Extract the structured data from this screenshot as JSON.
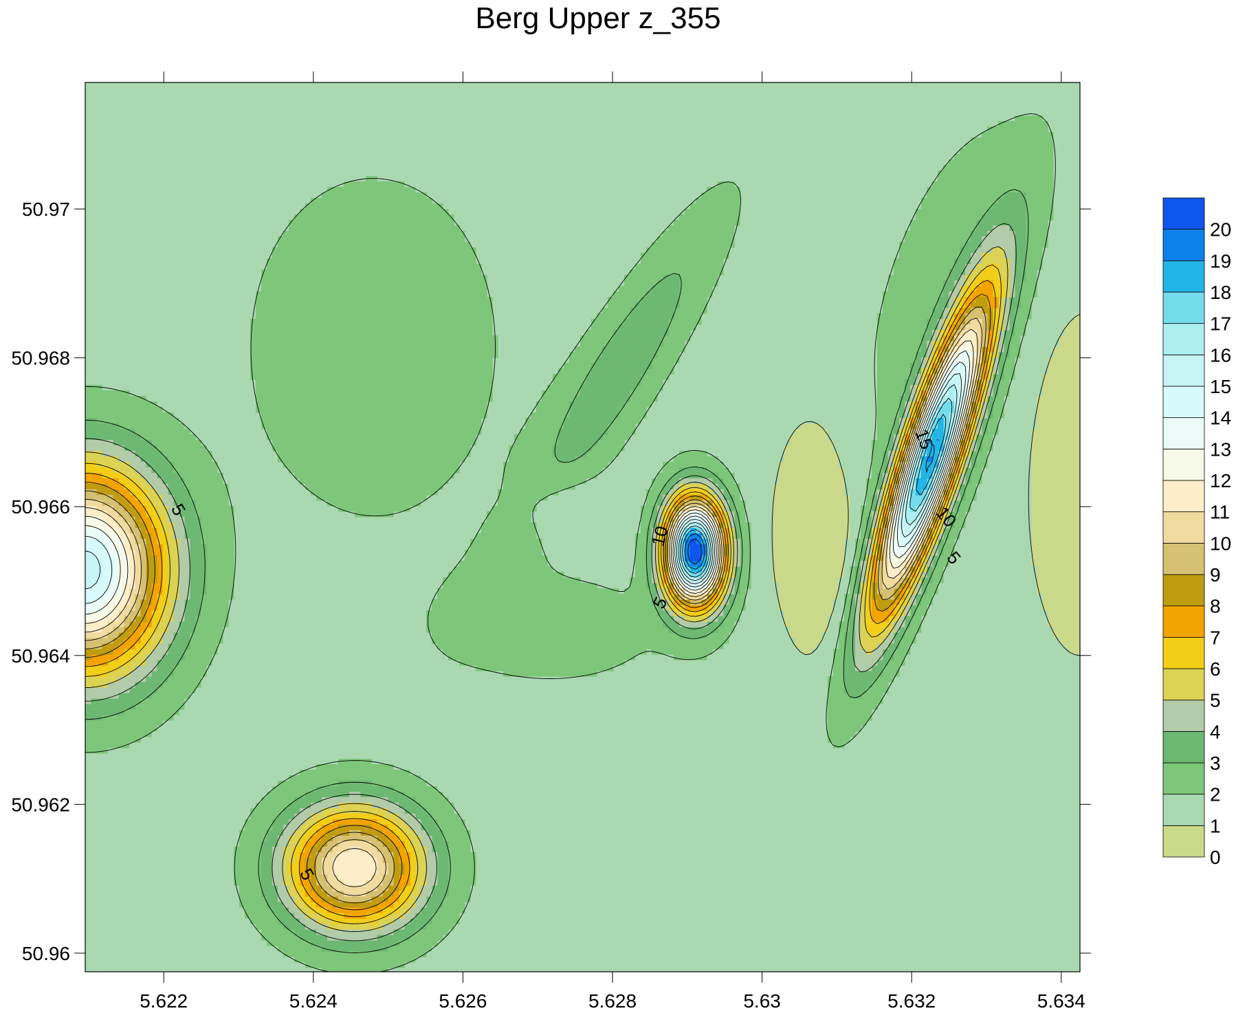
{
  "chart_data": {
    "type": "contour",
    "title": "Berg Upper z_355",
    "xlabel": "",
    "ylabel": "",
    "xlim": [
      5.62095,
      5.63425
    ],
    "ylim": [
      50.95975,
      50.9717
    ],
    "x_ticks": [
      5.622,
      5.624,
      5.626,
      5.628,
      5.63,
      5.632,
      5.634
    ],
    "x_tick_labels": [
      "5.622",
      "5.624",
      "5.626",
      "5.628",
      "5.63",
      "5.632",
      "5.634"
    ],
    "y_ticks": [
      50.96,
      50.962,
      50.964,
      50.966,
      50.968,
      50.97
    ],
    "y_tick_labels": [
      "50.96",
      "50.962",
      "50.964",
      "50.966",
      "50.968",
      "50.97"
    ],
    "grid": false,
    "background_level": 1.5,
    "levels": [
      0,
      1,
      2,
      3,
      4,
      5,
      6,
      7,
      8,
      9,
      10,
      11,
      12,
      13,
      14,
      15,
      16,
      17,
      18,
      19,
      20
    ],
    "colorbar": {
      "labels": [
        "0",
        "1",
        "2",
        "3",
        "4",
        "5",
        "6",
        "7",
        "8",
        "9",
        "10",
        "11",
        "12",
        "13",
        "14",
        "15",
        "16",
        "17",
        "18",
        "19",
        "20"
      ],
      "colors": [
        "#cbd98b",
        "#aad9b1",
        "#7dc67a",
        "#6db872",
        "#b2cba9",
        "#dcd253",
        "#f2ce16",
        "#f2a400",
        "#c09c10",
        "#d6c172",
        "#f1dba0",
        "#fdedc8",
        "#f6f9e8",
        "#ecfbf7",
        "#d7fafa",
        "#c7f4f5",
        "#aeeef0",
        "#75dcec",
        "#22b5e8",
        "#0c83eb",
        "#0f56ed"
      ]
    },
    "features": [
      {
        "x": 5.62095,
        "y": 50.96515,
        "peak": 14.0,
        "sx": 0.00075,
        "sy": 0.00095
      },
      {
        "x": 5.62455,
        "y": 50.96115,
        "peak": 10.5,
        "sx": 0.00065,
        "sy": 0.00058
      },
      {
        "x": 5.6291,
        "y": 50.9654,
        "peak": 19.6,
        "sx": 0.00028,
        "sy": 0.0005
      },
      {
        "x": 5.63225,
        "y": 50.96665,
        "peak": 17.2,
        "sx": 0.00025,
        "sy": 0.00155,
        "rot": 0.32
      },
      {
        "x": 5.6281,
        "y": 50.96785,
        "peak": 2.2,
        "sx": 0.00035,
        "sy": 0.0017,
        "rot": 0.55
      },
      {
        "x": 5.6248,
        "y": 50.96815,
        "peak": 1.1,
        "sx": 0.0013,
        "sy": 0.0018
      },
      {
        "x": 5.6272,
        "y": 50.96435,
        "peak": 0.9,
        "sx": 0.0012,
        "sy": 0.0006
      },
      {
        "x": 5.6307,
        "y": 50.9656,
        "peak": -1.7,
        "sx": 0.00038,
        "sy": 0.0011
      },
      {
        "x": 5.63425,
        "y": 50.9664,
        "peak": -1.8,
        "sx": 0.00045,
        "sy": 0.0015
      },
      {
        "x": 5.6273,
        "y": 50.966,
        "peak": -0.9,
        "sx": 0.0004,
        "sy": 0.0003
      },
      {
        "x": 5.6326,
        "y": 50.9688,
        "peak": 1.0,
        "sx": 0.0008,
        "sy": 0.002,
        "rot": 0.3
      }
    ],
    "contour_labels": [
      {
        "text": "5",
        "x": 5.62218,
        "y": 50.96595,
        "angle": 60
      },
      {
        "text": "5",
        "x": 5.6239,
        "y": 50.96105,
        "angle": 60
      },
      {
        "text": "10",
        "x": 5.62865,
        "y": 50.9656,
        "angle": -75
      },
      {
        "text": "5",
        "x": 5.62865,
        "y": 50.9647,
        "angle": -60
      },
      {
        "text": "15",
        "x": 5.63215,
        "y": 50.9669,
        "angle": 70
      },
      {
        "text": "10",
        "x": 5.63245,
        "y": 50.96585,
        "angle": 50
      },
      {
        "text": "5",
        "x": 5.63255,
        "y": 50.9653,
        "angle": 50
      }
    ]
  }
}
